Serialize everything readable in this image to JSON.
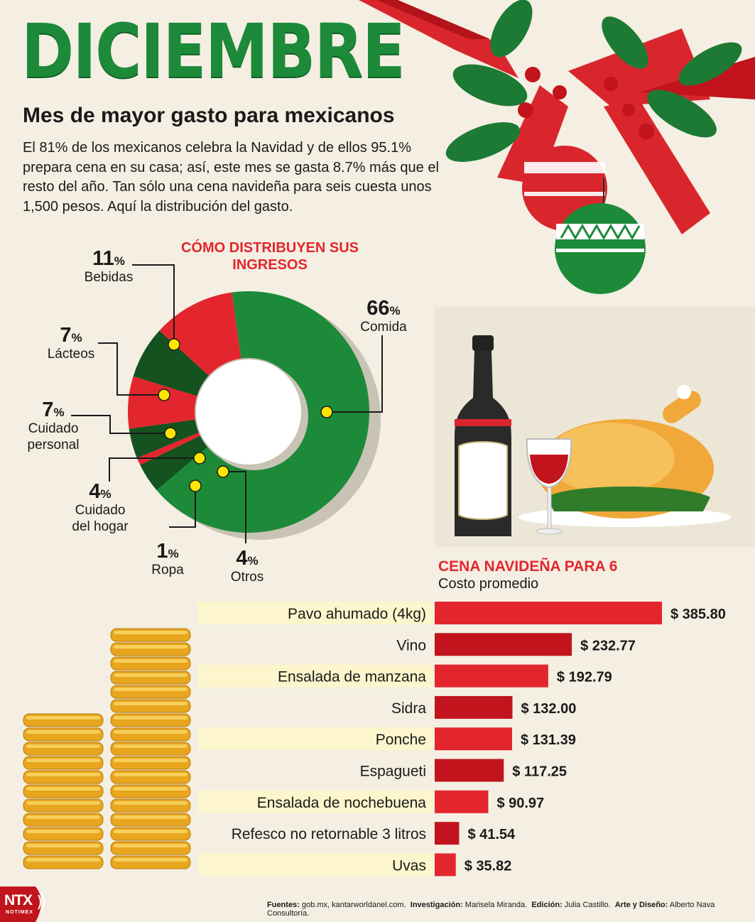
{
  "header": {
    "title": "DICIEMBRE",
    "subtitle": "Mes de mayor gasto para mexicanos",
    "intro": "El 81% de los mexicanos celebra la Navidad y de ellos 95.1% prepara cena en su casa; así, este mes se gasta 8.7% más que el resto del año. Tan sólo una cena navideña para seis cuesta unos 1,500 pesos. Aquí la distribución del gasto."
  },
  "colors": {
    "green": "#1d8a3a",
    "dark_green": "#14521f",
    "red": "#e3262d",
    "dark_red": "#c1141c",
    "highlight": "#fdf6cc",
    "marker": "#ffe600"
  },
  "chart_data": [
    {
      "type": "pie",
      "title": "CÓMO DISTRIBUYEN SUS INGRESOS",
      "slices": [
        {
          "num": "66",
          "unit": "%",
          "label": "Comida",
          "value": 66
        },
        {
          "num": "4",
          "unit": "%",
          "label": "Otros",
          "value": 4
        },
        {
          "num": "1",
          "unit": "%",
          "label": "Ropa",
          "value": 1
        },
        {
          "num": "4",
          "unit": "%",
          "label": "Cuidado del hogar",
          "value": 4
        },
        {
          "num": "7",
          "unit": "%",
          "label": "Cuidado personal",
          "value": 7
        },
        {
          "num": "7",
          "unit": "%",
          "label": "Lácteos",
          "value": 7
        },
        {
          "num": "11",
          "unit": "%",
          "label": "Bebidas",
          "value": 11
        }
      ]
    },
    {
      "type": "bar",
      "title": "CENA NAVIDEÑA PARA 6",
      "subtitle": "Costo promedio",
      "categories": [
        "Pavo ahumado (4kg)",
        "Vino",
        "Ensalada de manzana",
        "Sidra",
        "Ponche",
        "Espagueti",
        "Ensalada de nochebuena",
        "Refesco no retornable 3 litros",
        "Uvas"
      ],
      "values": [
        385.8,
        232.77,
        192.79,
        132.0,
        131.39,
        117.25,
        90.97,
        41.54,
        35.82
      ],
      "labels": [
        "$ 385.80",
        "$  232.77",
        "$ 192.79",
        "$ 132.00",
        "$ 131.39",
        "$  117.25",
        "$ 90.97",
        "$ 41.54",
        "$ 35.82"
      ]
    }
  ],
  "footer": {
    "sources_label": "Fuentes:",
    "sources": "gob.mx, kantarworldanel.com.",
    "research_label": "Investigación:",
    "research": "Marisela Miranda.",
    "edit_label": "Edición:",
    "edit": "Julia Castillo.",
    "design_label": "Arte y Diseño:",
    "design": "Alberto Nava Consultoría."
  },
  "logo": {
    "name": "NTX",
    "sub": "NOTIMEX"
  }
}
